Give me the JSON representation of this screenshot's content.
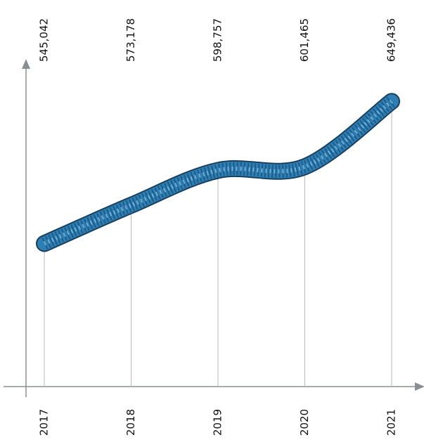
{
  "chart_data": {
    "type": "line",
    "categories": [
      "2017",
      "2018",
      "2019",
      "2020",
      "2021"
    ],
    "values": [
      545042,
      573178,
      598757,
      601465,
      649436
    ],
    "value_labels": [
      "545,042",
      "573,178",
      "598,757",
      "601,465",
      "649,436"
    ],
    "color": "#2f7fb5",
    "ylim": [
      440000,
      680000
    ]
  }
}
